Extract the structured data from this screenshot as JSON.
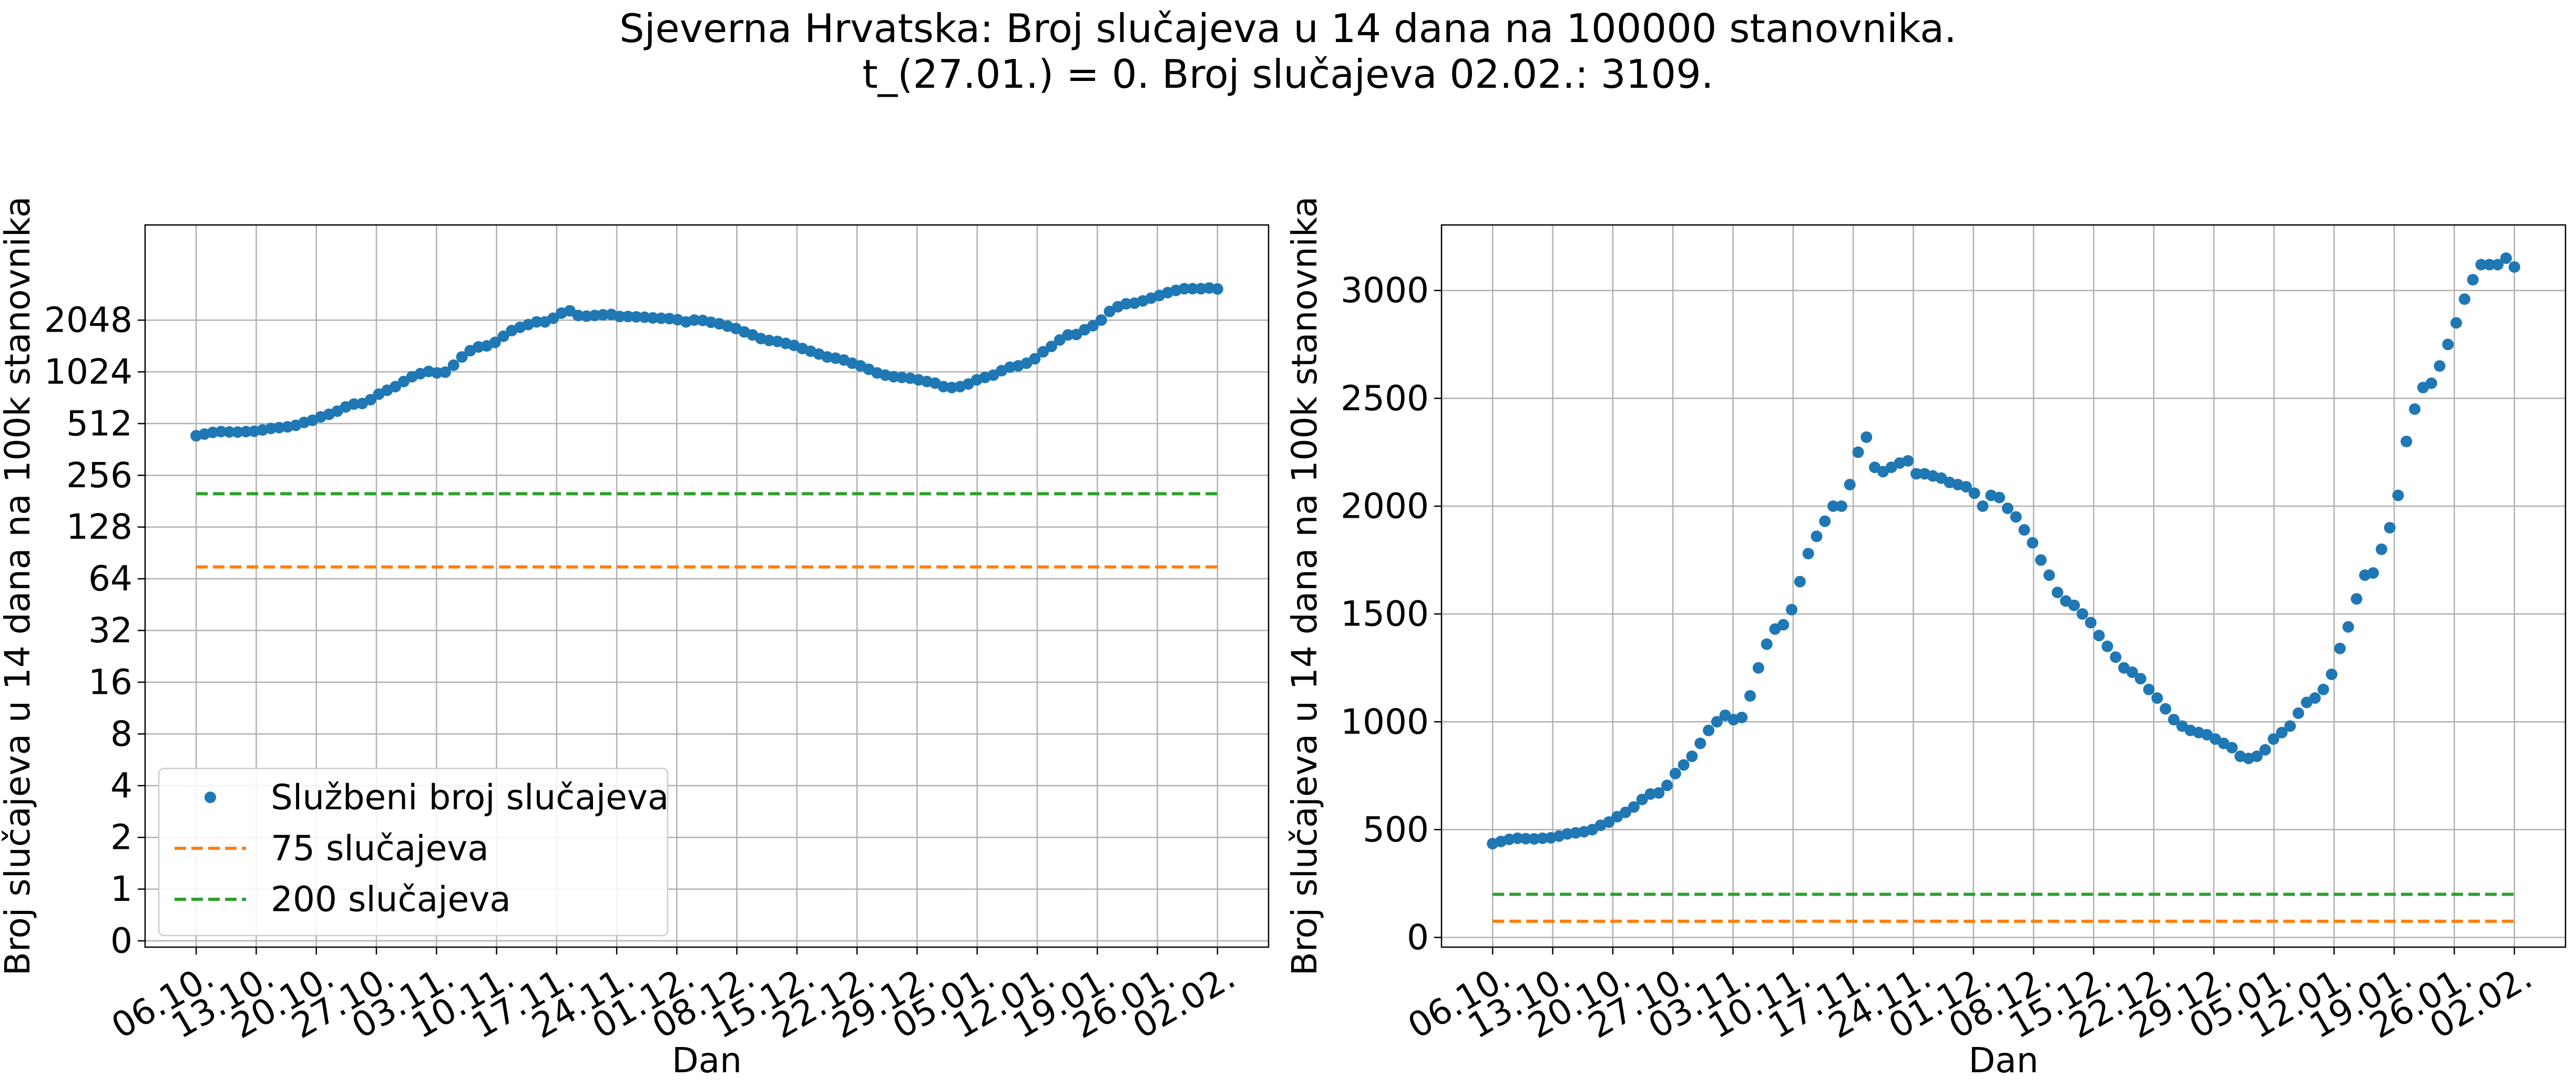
{
  "title_line1": "Sjeverna Hrvatska: Broj slučajeva u 14 dana na 100000 stanovnika.",
  "title_line2": "t_(27.01.) = 0. Broj slučajeva 02.02.: 3109.",
  "chart_data": [
    {
      "type": "scatter",
      "yscale": "log2",
      "xlabel": "Dan",
      "ylabel": "Broj slučajeva u 14 dana na 100k stanovnika",
      "x_start": "06.10.",
      "x_end": "02.02.",
      "xticks": [
        "06.10.",
        "13.10.",
        "20.10.",
        "27.10.",
        "03.11.",
        "10.11.",
        "17.11.",
        "24.11.",
        "01.12.",
        "08.12.",
        "15.12.",
        "22.12.",
        "29.12.",
        "05.01.",
        "12.01.",
        "19.01.",
        "26.01.",
        "02.02."
      ],
      "yticks": [
        "0",
        "1",
        "2",
        "4",
        "8",
        "16",
        "32",
        "64",
        "128",
        "256",
        "512",
        "1024",
        "2048"
      ],
      "grid": true,
      "legend": "lower-left",
      "series": [
        {
          "name": "Službeni broj slučajeva",
          "kind": "points",
          "color": "#1f77b4",
          "ref": "official_cases"
        },
        {
          "name": "75 slučajeva",
          "kind": "hline",
          "value": 75,
          "color": "#ff7f0e"
        },
        {
          "name": "200 slučajeva",
          "kind": "hline",
          "value": 200,
          "color": "#2ca02c"
        }
      ]
    },
    {
      "type": "scatter",
      "yscale": "linear",
      "xlabel": "Dan",
      "ylabel": "Broj slučajeva u 14 dana na 100k stanovnika",
      "x_start": "06.10.",
      "x_end": "02.02.",
      "xticks": [
        "06.10.",
        "13.10.",
        "20.10.",
        "27.10.",
        "03.11.",
        "10.11.",
        "17.11.",
        "24.11.",
        "01.12.",
        "08.12.",
        "15.12.",
        "22.12.",
        "29.12.",
        "05.01.",
        "12.01.",
        "19.01.",
        "26.01.",
        "02.02."
      ],
      "yticks": [
        "0",
        "500",
        "1000",
        "1500",
        "2000",
        "2500",
        "3000"
      ],
      "ylim": [
        0,
        3300
      ],
      "grid": true,
      "series": [
        {
          "kind": "points",
          "color": "#1f77b4",
          "ref": "official_cases"
        },
        {
          "kind": "hline",
          "value": 75,
          "color": "#ff7f0e"
        },
        {
          "kind": "hline",
          "value": 200,
          "color": "#2ca02c"
        }
      ]
    }
  ],
  "official_cases": [
    435,
    445,
    455,
    460,
    458,
    457,
    460,
    462,
    470,
    480,
    485,
    490,
    500,
    520,
    535,
    560,
    580,
    605,
    640,
    665,
    670,
    705,
    760,
    800,
    840,
    900,
    960,
    1000,
    1030,
    1010,
    1020,
    1120,
    1250,
    1360,
    1430,
    1450,
    1520,
    1650,
    1780,
    1860,
    1930,
    2000,
    2000,
    2100,
    2250,
    2320,
    2180,
    2160,
    2180,
    2200,
    2210,
    2150,
    2150,
    2140,
    2130,
    2110,
    2100,
    2090,
    2060,
    2000,
    2050,
    2040,
    1990,
    1950,
    1890,
    1830,
    1750,
    1680,
    1600,
    1560,
    1540,
    1500,
    1460,
    1400,
    1350,
    1300,
    1250,
    1230,
    1200,
    1150,
    1110,
    1060,
    1010,
    980,
    960,
    950,
    940,
    920,
    900,
    880,
    840,
    830,
    840,
    870,
    920,
    950,
    980,
    1040,
    1090,
    1110,
    1150,
    1220,
    1340,
    1440,
    1570,
    1680,
    1690,
    1800,
    1900,
    2050,
    2300,
    2450,
    2550,
    2570,
    2650,
    2750,
    2850,
    2960,
    3050,
    3120,
    3120,
    3120,
    3150,
    3109
  ]
}
